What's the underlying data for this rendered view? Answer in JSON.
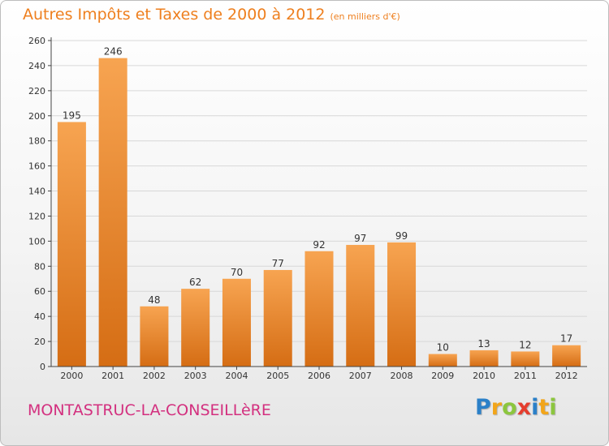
{
  "header": {
    "title": "Autres Impôts et Taxes de 2000 à 2012",
    "subtitle": "(en milliers d'€)"
  },
  "footer": {
    "commune": "MONTASTRUC-LA-CONSEILLèRE",
    "logo_letters": [
      "P",
      "r",
      "o",
      "x",
      "i",
      "t",
      "i"
    ],
    "logo_colors": [
      "#2b80c8",
      "#f2a51a",
      "#8cc63e",
      "#e53d2e",
      "#2b80c8",
      "#f2a51a",
      "#8cc63e"
    ]
  },
  "colors": {
    "title": "#ee7f1e",
    "commune": "#d3307f",
    "bar_light": "#f7a451",
    "bar_dark": "#d56d14",
    "axis": "#444444",
    "grid": "#d8d8d8"
  },
  "chart_data": {
    "type": "bar",
    "categories": [
      "2000",
      "2001",
      "2002",
      "2003",
      "2004",
      "2005",
      "2006",
      "2007",
      "2008",
      "2009",
      "2010",
      "2011",
      "2012"
    ],
    "values": [
      195,
      246,
      48,
      62,
      70,
      77,
      92,
      97,
      99,
      10,
      13,
      12,
      17
    ],
    "data_labels": [
      "195",
      "246",
      "48",
      "62",
      "70",
      "77",
      "92",
      "97",
      "99",
      "10",
      "13",
      "12",
      "17"
    ],
    "ylim": [
      0,
      260
    ],
    "yticks": [
      0,
      20,
      40,
      60,
      80,
      100,
      120,
      140,
      160,
      180,
      200,
      220,
      240,
      260
    ],
    "grid": true,
    "xlabel": "",
    "ylabel": ""
  }
}
